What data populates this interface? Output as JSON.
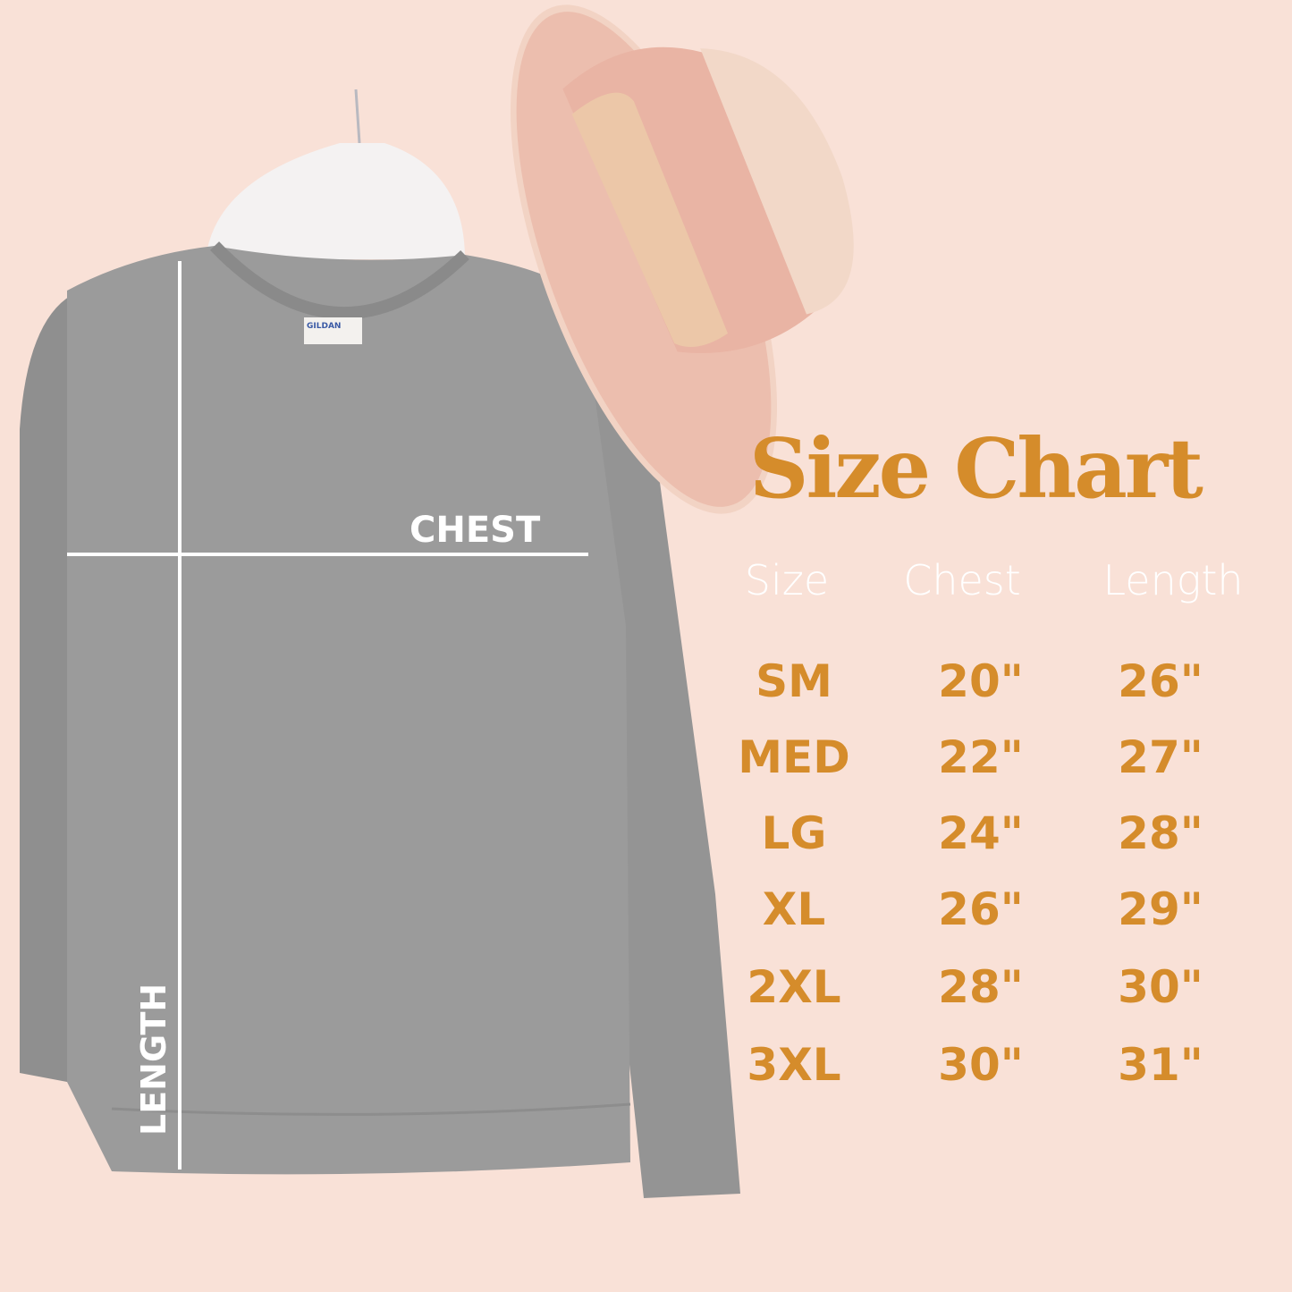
{
  "title": "Size Chart",
  "headers": [
    "Size",
    "Chest",
    "Length"
  ],
  "rows": [
    {
      "size": "SM",
      "chest": "20\"",
      "length": "26\""
    },
    {
      "size": "MED",
      "chest": "22\"",
      "length": "27\""
    },
    {
      "size": "LG",
      "chest": "24\"",
      "length": "28\""
    },
    {
      "size": "XL",
      "chest": "26\"",
      "length": "29\""
    },
    {
      "size": "2XL",
      "chest": "28\"",
      "length": "30\""
    },
    {
      "size": "3XL",
      "chest": "30\"",
      "length": "31\""
    }
  ],
  "garment_labels": {
    "chest": "CHEST",
    "length": "LENGTH",
    "brand_tag": "GILDAN"
  },
  "colors": {
    "background": "#f9e1d7",
    "accent": "#d58c2b",
    "sweatshirt": "#9a9a9a",
    "hat": "#e8b8a8"
  }
}
